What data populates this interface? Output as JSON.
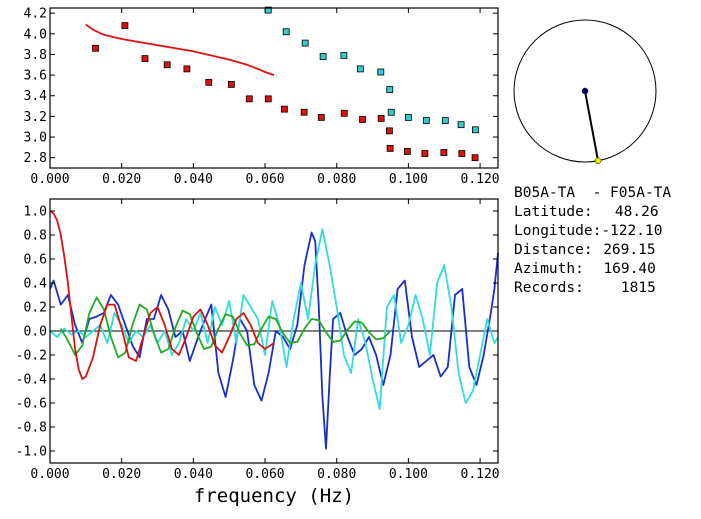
{
  "chart_data": [
    {
      "type": "scatter",
      "title": "",
      "xlabel": "",
      "ylabel": "",
      "xlim": [
        0,
        0.125
      ],
      "ylim": [
        2.7,
        4.25
      ],
      "xticks": [
        "0.000",
        "0.020",
        "0.040",
        "0.060",
        "0.080",
        "0.100",
        "0.120"
      ],
      "xtick_values": [
        0.0,
        0.02,
        0.04,
        0.06,
        0.08,
        0.1,
        0.12
      ],
      "yticks": [
        "2.8",
        "3.0",
        "3.2",
        "3.4",
        "3.6",
        "3.8",
        "4.0",
        "4.2"
      ],
      "ytick_values": [
        2.8,
        3.0,
        3.2,
        3.4,
        3.6,
        3.8,
        4.0,
        4.2
      ],
      "grid": false,
      "series": [
        {
          "kind": "points",
          "color": "#dd1111",
          "x": [
            0.0127,
            0.0209,
            0.0265,
            0.0327,
            0.0382,
            0.0443,
            0.0506,
            0.0556,
            0.0609,
            0.0654,
            0.0709,
            0.0757,
            0.0821,
            0.0872,
            0.0924,
            0.0947,
            0.0949,
            0.0997,
            0.1046,
            0.1099,
            0.1149,
            0.1186
          ],
          "y": [
            3.86,
            4.08,
            3.76,
            3.7,
            3.66,
            3.53,
            3.51,
            3.37,
            3.37,
            3.27,
            3.24,
            3.19,
            3.23,
            3.17,
            3.18,
            3.06,
            2.89,
            2.86,
            2.84,
            2.85,
            2.84,
            2.8
          ]
        },
        {
          "kind": "points",
          "color": "#33cccc",
          "x": [
            0.0609,
            0.0659,
            0.0712,
            0.0762,
            0.082,
            0.0866,
            0.0923,
            0.0948,
            0.0952,
            0.1,
            0.105,
            0.1103,
            0.1147,
            0.1187
          ],
          "y": [
            4.23,
            4.02,
            3.91,
            3.78,
            3.79,
            3.66,
            3.63,
            3.46,
            3.24,
            3.19,
            3.16,
            3.16,
            3.12,
            3.07
          ]
        },
        {
          "kind": "line",
          "color": "#dd1111",
          "x": [
            0.01,
            0.012,
            0.015,
            0.02,
            0.025,
            0.03,
            0.035,
            0.04,
            0.045,
            0.05,
            0.055,
            0.058,
            0.06,
            0.0625
          ],
          "y": [
            4.09,
            4.04,
            3.99,
            3.95,
            3.92,
            3.89,
            3.86,
            3.83,
            3.79,
            3.75,
            3.7,
            3.66,
            3.63,
            3.6
          ]
        }
      ]
    },
    {
      "type": "line",
      "title": "",
      "xlabel": "frequency (Hz)",
      "ylabel": "",
      "xlim": [
        0,
        0.125
      ],
      "ylim": [
        -1.1,
        1.1
      ],
      "xticks": [
        "0.000",
        "0.020",
        "0.040",
        "0.060",
        "0.080",
        "0.100",
        "0.120"
      ],
      "xtick_values": [
        0.0,
        0.02,
        0.04,
        0.06,
        0.08,
        0.1,
        0.12
      ],
      "yticks": [
        "1.0",
        "0.8",
        "0.6",
        "0.4",
        "0.2",
        "0.0",
        "-0.2",
        "-0.4",
        "-0.6",
        "-0.8",
        "-1.0"
      ],
      "ytick_values": [
        1.0,
        0.8,
        0.6,
        0.4,
        0.2,
        0.0,
        -0.2,
        -0.4,
        -0.6,
        -0.8,
        -1.0
      ],
      "grid": false,
      "zero_line": true,
      "series": [
        {
          "color": "#1a2ecc",
          "x": [
            0.0,
            0.001,
            0.002,
            0.003,
            0.005,
            0.007,
            0.009,
            0.011,
            0.013,
            0.015,
            0.017,
            0.019,
            0.021,
            0.023,
            0.025,
            0.027,
            0.029,
            0.031,
            0.033,
            0.035,
            0.037,
            0.039,
            0.041,
            0.043,
            0.045,
            0.047,
            0.049,
            0.051,
            0.053,
            0.055,
            0.057,
            0.059,
            0.061,
            0.063,
            0.065,
            0.067,
            0.069,
            0.071,
            0.073,
            0.074,
            0.075,
            0.076,
            0.077,
            0.078,
            0.079,
            0.081,
            0.083,
            0.085,
            0.087,
            0.089,
            0.091,
            0.093,
            0.095,
            0.097,
            0.099,
            0.101,
            0.103,
            0.105,
            0.107,
            0.109,
            0.111,
            0.113,
            0.115,
            0.117,
            0.119,
            0.121,
            0.123,
            0.124,
            0.125
          ],
          "y": [
            0.35,
            0.42,
            0.32,
            0.22,
            0.3,
            0.05,
            -0.1,
            0.1,
            0.12,
            0.15,
            0.3,
            0.22,
            0.05,
            -0.12,
            -0.22,
            0.1,
            0.1,
            0.3,
            0.18,
            -0.05,
            0.0,
            -0.25,
            -0.08,
            0.08,
            0.22,
            -0.35,
            -0.55,
            -0.25,
            0.1,
            0.0,
            -0.45,
            -0.58,
            -0.35,
            0.0,
            -0.05,
            -0.15,
            0.05,
            0.55,
            0.82,
            0.75,
            0.2,
            -0.55,
            -0.98,
            -0.4,
            0.1,
            0.15,
            -0.05,
            -0.2,
            -0.15,
            -0.05,
            -0.2,
            -0.45,
            -0.2,
            0.35,
            0.42,
            -0.05,
            -0.3,
            -0.25,
            -0.2,
            -0.38,
            -0.3,
            0.3,
            0.35,
            -0.3,
            -0.45,
            -0.2,
            0.15,
            0.35,
            0.65
          ]
        },
        {
          "color": "#33dddd",
          "x": [
            0.0,
            0.002,
            0.004,
            0.006,
            0.008,
            0.01,
            0.012,
            0.014,
            0.016,
            0.018,
            0.02,
            0.022,
            0.024,
            0.026,
            0.028,
            0.03,
            0.032,
            0.034,
            0.036,
            0.038,
            0.04,
            0.042,
            0.044,
            0.046,
            0.048,
            0.05,
            0.052,
            0.054,
            0.056,
            0.058,
            0.06,
            0.062,
            0.064,
            0.066,
            0.068,
            0.07,
            0.072,
            0.074,
            0.076,
            0.078,
            0.08,
            0.082,
            0.084,
            0.086,
            0.088,
            0.09,
            0.092,
            0.094,
            0.096,
            0.098,
            0.1,
            0.102,
            0.104,
            0.106,
            0.108,
            0.11,
            0.112,
            0.114,
            0.116,
            0.118,
            0.12,
            0.122,
            0.124,
            0.125
          ],
          "y": [
            0.0,
            -0.05,
            0.02,
            -0.03,
            0.0,
            -0.05,
            0.0,
            0.05,
            -0.1,
            0.15,
            0.05,
            -0.1,
            0.0,
            -0.05,
            0.05,
            -0.1,
            0.0,
            -0.2,
            -0.1,
            0.1,
            0.0,
            0.15,
            -0.1,
            0.2,
            0.05,
            0.25,
            -0.1,
            0.3,
            0.2,
            0.1,
            -0.2,
            0.25,
            0.05,
            -0.3,
            0.1,
            0.4,
            0.1,
            0.55,
            0.85,
            0.55,
            0.2,
            -0.2,
            -0.35,
            0.1,
            -0.1,
            -0.4,
            -0.65,
            0.2,
            0.3,
            -0.1,
            0.05,
            0.3,
            0.1,
            -0.2,
            0.4,
            0.55,
            0.2,
            -0.35,
            -0.6,
            -0.5,
            -0.2,
            0.1,
            -0.1,
            -0.05
          ]
        },
        {
          "color": "#22aa22",
          "x": [
            0.003,
            0.005,
            0.007,
            0.009,
            0.011,
            0.013,
            0.015,
            0.017,
            0.019,
            0.021,
            0.023,
            0.025,
            0.027,
            0.029,
            0.031,
            0.033,
            0.035,
            0.037,
            0.039,
            0.041,
            0.043,
            0.045,
            0.047,
            0.049,
            0.051,
            0.053,
            0.055,
            0.057,
            0.059,
            0.061,
            0.063,
            0.065,
            0.067,
            0.069,
            0.071,
            0.073,
            0.075,
            0.077,
            0.079,
            0.081,
            0.083,
            0.085,
            0.087,
            0.089,
            0.091,
            0.093,
            0.095
          ],
          "y": [
            0.02,
            -0.08,
            -0.2,
            -0.12,
            0.15,
            0.28,
            0.18,
            -0.05,
            -0.22,
            -0.18,
            0.05,
            0.22,
            0.18,
            -0.02,
            -0.18,
            -0.15,
            0.03,
            0.17,
            0.14,
            -0.02,
            -0.15,
            -0.13,
            0.02,
            0.14,
            0.12,
            -0.02,
            -0.12,
            -0.11,
            0.02,
            0.12,
            0.1,
            -0.02,
            -0.1,
            -0.09,
            0.02,
            0.1,
            0.09,
            -0.01,
            -0.09,
            -0.08,
            0.01,
            0.08,
            0.07,
            -0.01,
            -0.07,
            -0.06,
            0.0
          ]
        },
        {
          "color": "#dd1111",
          "x": [
            0.0,
            0.001,
            0.002,
            0.003,
            0.004,
            0.005,
            0.006,
            0.007,
            0.008,
            0.009,
            0.01,
            0.012,
            0.014,
            0.016,
            0.018,
            0.02,
            0.022,
            0.024,
            0.026,
            0.028,
            0.03,
            0.032,
            0.034,
            0.036,
            0.038,
            0.04,
            0.042,
            0.044,
            0.046,
            0.048,
            0.05,
            0.052,
            0.054,
            0.056,
            0.058,
            0.06,
            0.0625
          ],
          "y": [
            1.0,
            0.98,
            0.92,
            0.8,
            0.62,
            0.4,
            0.12,
            -0.15,
            -0.32,
            -0.4,
            -0.38,
            -0.22,
            0.05,
            0.22,
            0.22,
            0.02,
            -0.22,
            -0.25,
            -0.05,
            0.15,
            0.2,
            0.05,
            -0.15,
            -0.2,
            -0.05,
            0.12,
            0.18,
            0.05,
            -0.12,
            -0.18,
            -0.05,
            0.1,
            0.15,
            0.05,
            -0.1,
            -0.15,
            -0.1
          ]
        }
      ]
    }
  ],
  "map_inset": {
    "circle_color": "#000000",
    "center_marker_color": "#000066",
    "target_marker_color": "#eeee00",
    "azimuth_deg": 169.4
  },
  "info": {
    "station_pair": "B05A-TA  - F05A-TA",
    "latitude_label": "Latitude:",
    "latitude_value": "48.26",
    "longitude_label": "Longitude:",
    "longitude_value": "-122.10",
    "distance_label": "Distance:",
    "distance_value": "269.15",
    "azimuth_label": "Azimuth:",
    "azimuth_value": "169.40",
    "records_label": "Records:",
    "records_value": "1815"
  }
}
